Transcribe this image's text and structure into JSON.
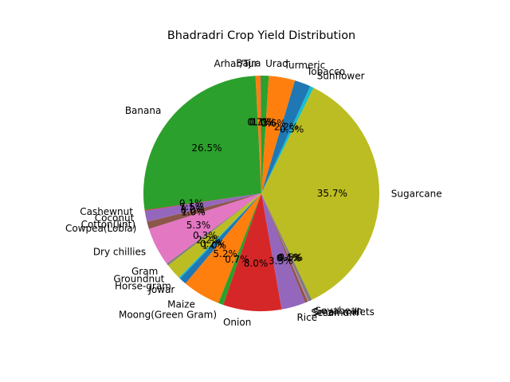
{
  "chart_data": {
    "type": "pie",
    "title": "Bhadradri Crop Yield Distribution",
    "start_angle_deg": 90,
    "direction": "counterclockwise",
    "slices": [
      {
        "label": "Bajra",
        "pct": "0.1%",
        "value": 0.1,
        "color": "#1f77b4"
      },
      {
        "label": "Arhar/Tur",
        "pct": "0.7%",
        "value": 0.7,
        "color": "#ff7f0e"
      },
      {
        "label": "Banana",
        "pct": "26.5%",
        "value": 26.5,
        "color": "#2ca02c"
      },
      {
        "label": "Cashewnut",
        "pct": "0.1%",
        "value": 0.1,
        "color": "#d62728"
      },
      {
        "label": "Coconut",
        "pct": "1.5%",
        "value": 1.5,
        "color": "#9467bd"
      },
      {
        "label": "Cotton(lint)",
        "pct": "0.0%",
        "value": 0.02,
        "color": "#8c564b"
      },
      {
        "label": "Cowpea(Lobia)",
        "pct": "1.0%",
        "value": 1.0,
        "color": "#8c564b"
      },
      {
        "label": "Dry chillies",
        "pct": "5.3%",
        "value": 5.3,
        "color": "#e377c2"
      },
      {
        "label": "Gram",
        "pct": "0.3%",
        "value": 0.3,
        "color": "#7f7f7f"
      },
      {
        "label": "Groundnut",
        "pct": "2.2%",
        "value": 2.2,
        "color": "#bcbd22"
      },
      {
        "label": "Horse-gram",
        "pct": "0.2%",
        "value": 0.2,
        "color": "#17becf"
      },
      {
        "label": "Jowar",
        "pct": "1.0%",
        "value": 1.0,
        "color": "#1f77b4"
      },
      {
        "label": "Maize",
        "pct": "5.2%",
        "value": 5.2,
        "color": "#ff7f0e"
      },
      {
        "label": "Moong(Green Gram)",
        "pct": "0.7%",
        "value": 0.7,
        "color": "#2ca02c"
      },
      {
        "label": "Onion",
        "pct": "8.0%",
        "value": 8.0,
        "color": "#d62728"
      },
      {
        "label": "Rice",
        "pct": "3.3%",
        "value": 3.3,
        "color": "#9467bd"
      },
      {
        "label": "Sesamum",
        "pct": "0.4%",
        "value": 0.4,
        "color": "#8c564b"
      },
      {
        "label": "Small millets",
        "pct": "0.1%",
        "value": 0.1,
        "color": "#e377c2"
      },
      {
        "label": "Soyabean",
        "pct": "0.5%",
        "value": 0.5,
        "color": "#7f7f7f"
      },
      {
        "label": "Sugarcane",
        "pct": "35.7%",
        "value": 35.7,
        "color": "#bcbd22"
      },
      {
        "label": "Sunflower",
        "pct": "0.5%",
        "value": 0.5,
        "color": "#17becf"
      },
      {
        "label": "Tobacco",
        "pct": "2.2%",
        "value": 2.2,
        "color": "#1f77b4"
      },
      {
        "label": "Turmeric",
        "pct": "3.6%",
        "value": 3.6,
        "color": "#ff7f0e"
      },
      {
        "label": "Urad",
        "pct": "1.0%",
        "value": 1.0,
        "color": "#2ca02c"
      }
    ]
  }
}
